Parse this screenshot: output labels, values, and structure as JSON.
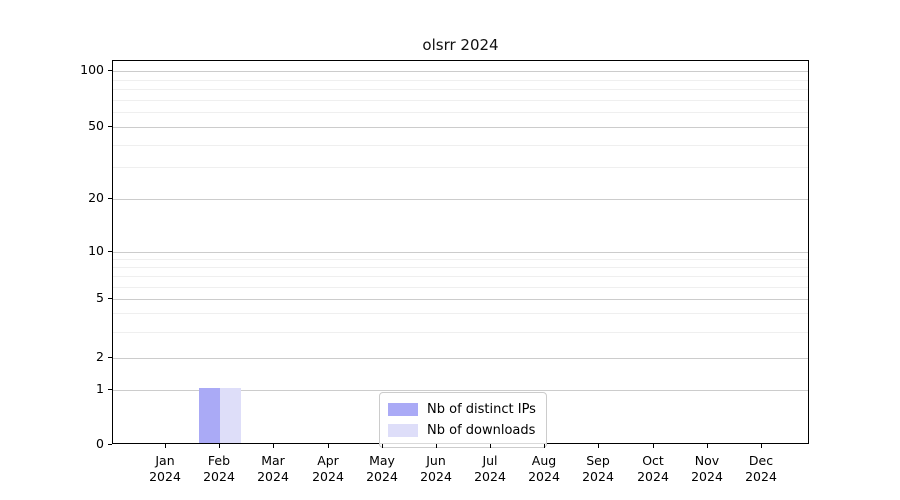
{
  "chart_data": {
    "type": "bar",
    "title": "olsrr 2024",
    "categories": [
      {
        "month": "Jan",
        "year": "2024"
      },
      {
        "month": "Feb",
        "year": "2024"
      },
      {
        "month": "Mar",
        "year": "2024"
      },
      {
        "month": "Apr",
        "year": "2024"
      },
      {
        "month": "May",
        "year": "2024"
      },
      {
        "month": "Jun",
        "year": "2024"
      },
      {
        "month": "Jul",
        "year": "2024"
      },
      {
        "month": "Aug",
        "year": "2024"
      },
      {
        "month": "Sep",
        "year": "2024"
      },
      {
        "month": "Oct",
        "year": "2024"
      },
      {
        "month": "Nov",
        "year": "2024"
      },
      {
        "month": "Dec",
        "year": "2024"
      }
    ],
    "series": [
      {
        "name": "Nb of distinct IPs",
        "color": "#aaaaf6",
        "values": [
          0,
          1,
          0,
          0,
          0,
          0,
          0,
          0,
          0,
          0,
          0,
          0
        ]
      },
      {
        "name": "Nb of downloads",
        "color": "#dedef9",
        "values": [
          0,
          1,
          0,
          0,
          0,
          0,
          0,
          0,
          0,
          0,
          0,
          0
        ]
      }
    ],
    "y_axis": {
      "scale": "log-like (0 baseline, log above 1)",
      "major_ticks": [
        0,
        1,
        2,
        5,
        10,
        20,
        50,
        100
      ],
      "minor_gridline_values": [
        3,
        4,
        6,
        7,
        8,
        9,
        30,
        40,
        60,
        70,
        80,
        90
      ],
      "ylim_top_label": 100
    },
    "xlabel": "",
    "ylabel": "",
    "grid": "horizontal, major + faint minor",
    "legend_position": "inside bottom-center"
  }
}
